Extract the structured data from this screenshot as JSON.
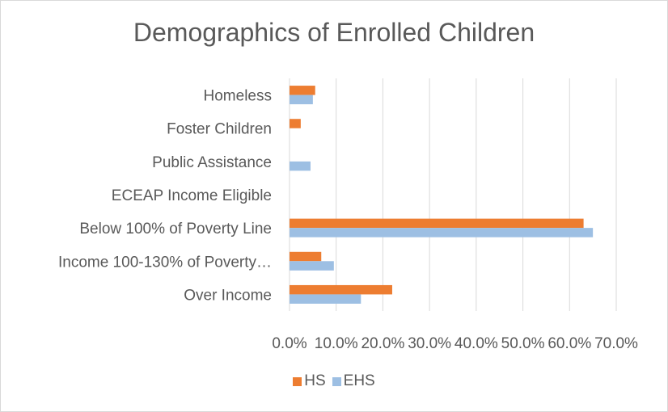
{
  "chart_data": {
    "type": "bar",
    "orientation": "horizontal",
    "title": "Demographics of Enrolled Children",
    "categories": [
      "Homeless",
      "Foster Children",
      "Public Assistance",
      "ECEAP Income Eligible",
      "Below 100% of Poverty Line",
      "Income 100-130% of Poverty…",
      "Over Income"
    ],
    "series": [
      {
        "name": "HS",
        "color": "#ed7d31",
        "values": [
          0.055,
          0.024,
          0.0,
          0.0,
          0.63,
          0.068,
          0.22
        ]
      },
      {
        "name": "EHS",
        "color": "#9dbfe3",
        "values": [
          0.05,
          0.0,
          0.045,
          0.0,
          0.65,
          0.095,
          0.153
        ]
      }
    ],
    "xlim": [
      0,
      0.7
    ],
    "xticks": [
      "0.0%",
      "10.0%",
      "20.0%",
      "30.0%",
      "40.0%",
      "50.0%",
      "60.0%",
      "70.0%"
    ],
    "grid": true,
    "legend_position": "bottom"
  }
}
